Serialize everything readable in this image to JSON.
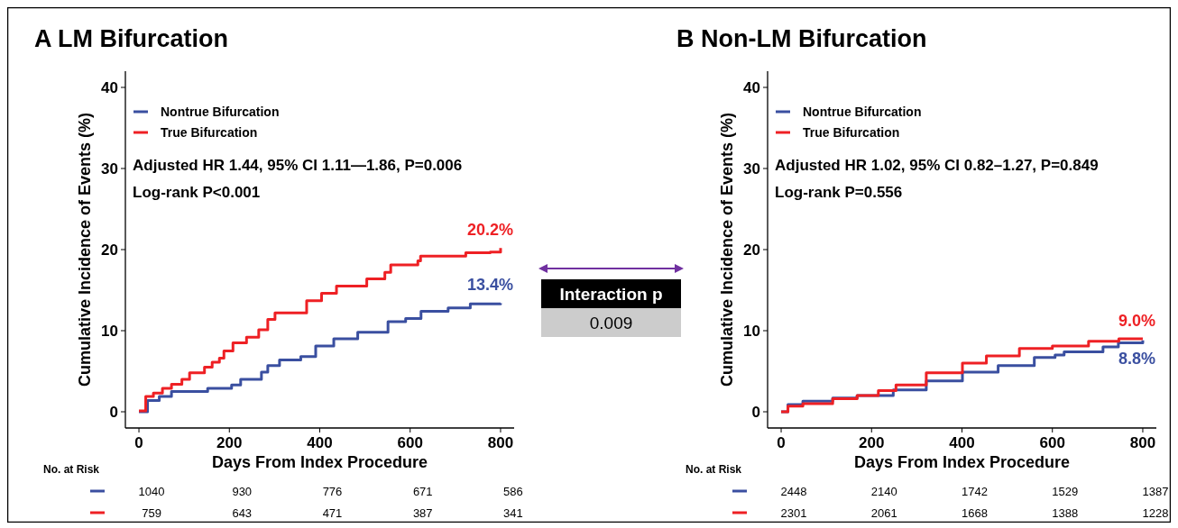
{
  "chart_data": [
    {
      "type": "step",
      "title": "A  LM Bifurcation",
      "xlabel": "Days From Index Procedure",
      "ylabel": "Cumulative Incidence of Events (%)",
      "xlim": [
        -30,
        830
      ],
      "ylim": [
        -2,
        42
      ],
      "xticks": [
        0,
        200,
        400,
        600,
        800
      ],
      "yticks": [
        0,
        10,
        20,
        30,
        40
      ],
      "legend": "top left",
      "grid": false,
      "series": [
        {
          "name": "Nontrue Bifurcation",
          "color": "#3a4fa0",
          "x": [
            0,
            19,
            45,
            72,
            152,
            205,
            225,
            271,
            285,
            311,
            358,
            391,
            431,
            484,
            551,
            590,
            624,
            684,
            733,
            800
          ],
          "values": [
            0,
            1.4,
            1.9,
            2.5,
            2.9,
            3.3,
            4,
            4.9,
            5.7,
            6.4,
            6.8,
            8.1,
            9,
            9.8,
            11.1,
            11.5,
            12.4,
            12.8,
            13.3,
            13.4
          ],
          "value_labels": [
            null,
            null,
            null,
            null,
            null,
            null,
            null,
            null,
            null,
            null,
            null,
            null,
            null,
            null,
            null,
            null,
            null,
            null,
            null,
            "13.4%"
          ]
        },
        {
          "name": "True Bifurcation",
          "color": "#ee2024",
          "x": [
            0,
            15,
            32,
            52,
            72,
            95,
            112,
            145,
            162,
            178,
            188,
            208,
            238,
            265,
            285,
            301,
            361,
            371,
            404,
            437,
            504,
            544,
            557,
            617,
            623,
            723,
            777,
            800
          ],
          "values": [
            0.1,
            1.9,
            2.3,
            2.9,
            3.4,
            4,
            4.8,
            5.5,
            6.1,
            6.6,
            7.5,
            8.5,
            9.2,
            10.1,
            11.4,
            12.2,
            12.2,
            13.7,
            14.6,
            15.5,
            16.4,
            17.2,
            18.1,
            18.6,
            19.2,
            19.6,
            19.7,
            20.2
          ],
          "value_labels": [
            null,
            null,
            null,
            null,
            null,
            null,
            null,
            null,
            null,
            null,
            null,
            null,
            null,
            null,
            null,
            null,
            null,
            null,
            null,
            null,
            null,
            null,
            null,
            null,
            null,
            null,
            null,
            "20.2%"
          ]
        }
      ],
      "annotations": [
        "Adjusted HR 1.44, 95% CI 1.11—1.86, P=0.006",
        "Log-rank P<0.001",
        "No. at Risk",
        "1040",
        "930",
        "776",
        "671",
        "586",
        "759",
        "643",
        "471",
        "387",
        "341"
      ]
    },
    {
      "type": "other",
      "title": "Interaction p",
      "annotations": [
        "0.009"
      ]
    },
    {
      "type": "step",
      "title": "B  Non-LM Bifurcation",
      "xlabel": "Days From Index Procedure",
      "ylabel": "Cumulative Incidence of Events (%)",
      "xlim": [
        -30,
        830
      ],
      "ylim": [
        -2,
        42
      ],
      "xticks": [
        0,
        200,
        400,
        600,
        800
      ],
      "yticks": [
        0,
        10,
        20,
        30,
        40
      ],
      "legend": "top left",
      "grid": false,
      "series": [
        {
          "name": "Nontrue Bifurcation",
          "color": "#3a4fa0",
          "x": [
            0,
            15,
            48,
            114,
            168,
            248,
            321,
            401,
            480,
            560,
            606,
            626,
            712,
            746,
            800
          ],
          "values": [
            0,
            0.9,
            1.3,
            1.7,
            2,
            2.7,
            3.8,
            4.9,
            5.7,
            6.7,
            7,
            7.4,
            8,
            8.5,
            8.8
          ],
          "value_labels": [
            null,
            null,
            null,
            null,
            null,
            null,
            null,
            null,
            null,
            null,
            null,
            null,
            null,
            null,
            "8.8%"
          ]
        },
        {
          "name": "True Bifurcation",
          "color": "#ee2024",
          "x": [
            0,
            15,
            48,
            114,
            168,
            215,
            254,
            321,
            401,
            454,
            527,
            600,
            680,
            747,
            800
          ],
          "values": [
            0,
            0.7,
            1,
            1.6,
            2,
            2.6,
            3.3,
            4.8,
            6,
            6.9,
            7.8,
            8.1,
            8.7,
            9,
            9.0
          ],
          "value_labels": [
            null,
            null,
            null,
            null,
            null,
            null,
            null,
            null,
            null,
            null,
            null,
            null,
            null,
            null,
            "9.0%"
          ]
        }
      ],
      "annotations": [
        "Adjusted HR 1.02, 95% CI 0.82–1.27, P=0.849",
        "Log-rank P=0.556",
        "No. at Risk",
        "2448",
        "2140",
        "1742",
        "1529",
        "1387",
        "2301",
        "2061",
        "1668",
        "1388",
        "1228"
      ]
    }
  ]
}
